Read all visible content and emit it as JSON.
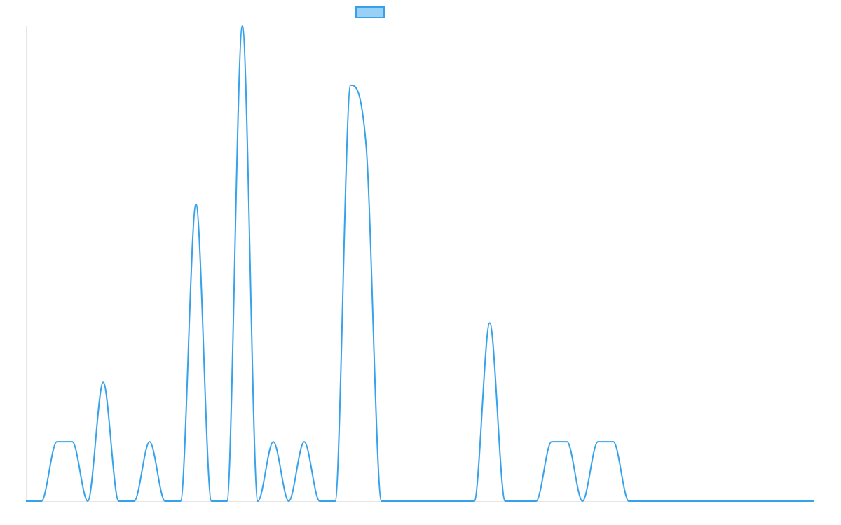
{
  "chart_data": {
    "type": "line",
    "title": "",
    "xlabel": "",
    "ylabel": "",
    "grid": false,
    "legend": {
      "placement": "top-center",
      "entries": [
        ""
      ]
    },
    "ylim": [
      0,
      16
    ],
    "x": [
      0,
      1,
      2,
      3,
      4,
      5,
      6,
      7,
      8,
      9,
      10,
      11,
      12,
      13,
      14,
      15,
      16,
      17,
      18,
      19,
      20,
      21,
      22,
      23,
      24,
      25,
      26,
      27,
      28,
      29,
      30,
      31,
      32,
      33,
      34,
      35,
      36,
      37,
      38,
      39,
      40,
      41,
      42,
      43,
      44,
      45,
      46,
      47,
      48,
      49,
      50,
      51
    ],
    "series": [
      {
        "name": "",
        "color": "#36a2eb",
        "fill": "#9ad0f5",
        "values": [
          0,
          0,
          2,
          2,
          0,
          4,
          0,
          0,
          2,
          0,
          0,
          10,
          0,
          0,
          16,
          0,
          2,
          0,
          2,
          0,
          0,
          14,
          12,
          0,
          0,
          0,
          0,
          0,
          0,
          0,
          6,
          0,
          0,
          0,
          2,
          2,
          0,
          2,
          2,
          0,
          0,
          0,
          0,
          0,
          0,
          0,
          0,
          0,
          0,
          0,
          0,
          0
        ]
      }
    ]
  }
}
